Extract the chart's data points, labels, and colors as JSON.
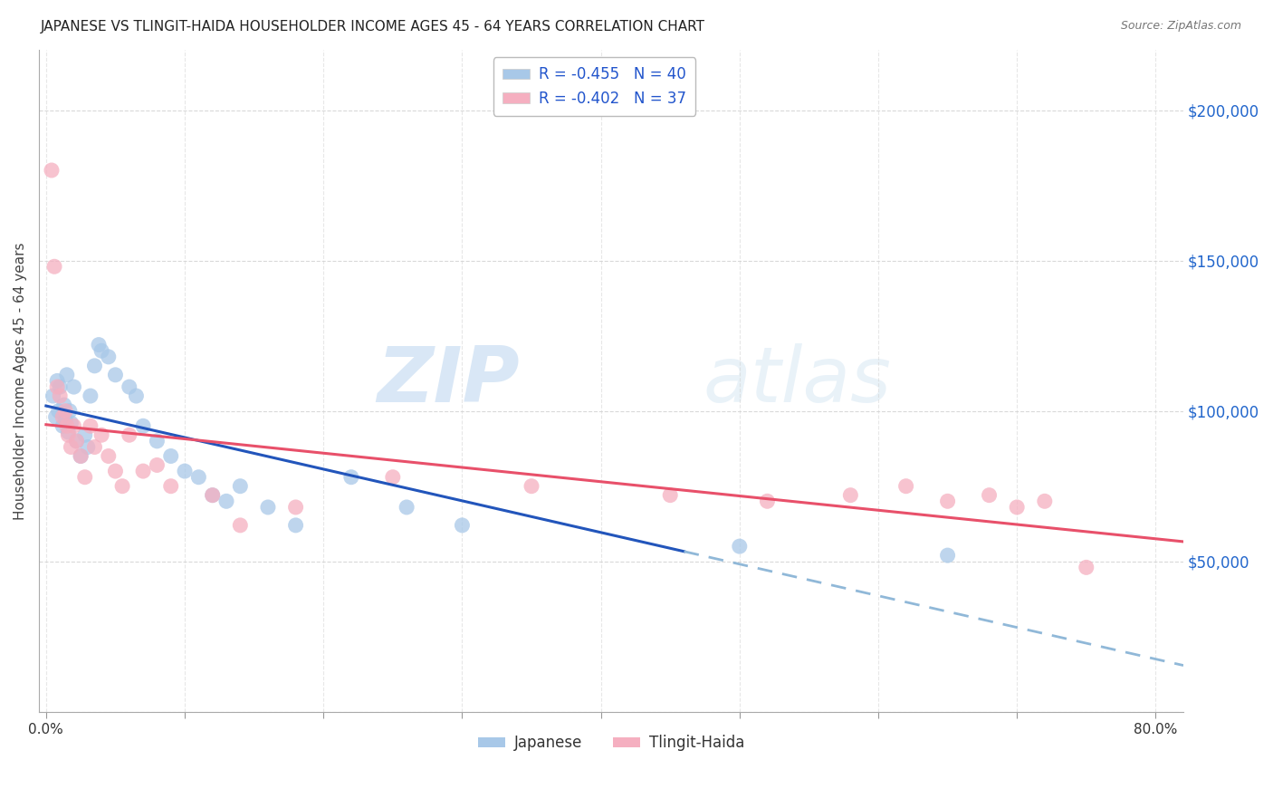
{
  "title": "JAPANESE VS TLINGIT-HAIDA HOUSEHOLDER INCOME AGES 45 - 64 YEARS CORRELATION CHART",
  "source": "Source: ZipAtlas.com",
  "ylabel": "Householder Income Ages 45 - 64 years",
  "xlabel_tick_positions": [
    0.0,
    0.1,
    0.2,
    0.3,
    0.4,
    0.5,
    0.6,
    0.7,
    0.8
  ],
  "xlabel_tick_labels": [
    "0.0%",
    "",
    "",
    "",
    "",
    "",
    "",
    "",
    "80.0%"
  ],
  "ylabel_vals": [
    0,
    50000,
    100000,
    150000,
    200000
  ],
  "ylabel_ticks_right": [
    "",
    "$50,000",
    "$100,000",
    "$150,000",
    "$200,000"
  ],
  "xlim": [
    -0.005,
    0.82
  ],
  "ylim": [
    0,
    220000
  ],
  "legend1_R": "R = -0.455",
  "legend1_N": "N = 40",
  "legend2_R": "R = -0.402",
  "legend2_N": "N = 37",
  "japanese_color": "#a8c8e8",
  "tlingit_color": "#f5afc0",
  "japanese_line_color": "#2255bb",
  "tlingit_line_color": "#e8506a",
  "dashed_line_color": "#90b8d8",
  "watermark_zip": "ZIP",
  "watermark_atlas": "atlas",
  "background_color": "#ffffff",
  "grid_color": "#d0d0d0",
  "japanese_x": [
    0.005,
    0.007,
    0.008,
    0.009,
    0.01,
    0.012,
    0.013,
    0.014,
    0.015,
    0.016,
    0.017,
    0.018,
    0.02,
    0.022,
    0.025,
    0.028,
    0.03,
    0.032,
    0.035,
    0.038,
    0.04,
    0.045,
    0.05,
    0.06,
    0.065,
    0.07,
    0.08,
    0.09,
    0.1,
    0.11,
    0.12,
    0.13,
    0.14,
    0.16,
    0.18,
    0.22,
    0.26,
    0.3,
    0.5,
    0.65
  ],
  "japanese_y": [
    105000,
    98000,
    110000,
    100000,
    108000,
    95000,
    102000,
    97000,
    112000,
    93000,
    100000,
    96000,
    108000,
    90000,
    85000,
    92000,
    88000,
    105000,
    115000,
    122000,
    120000,
    118000,
    112000,
    108000,
    105000,
    95000,
    90000,
    85000,
    80000,
    78000,
    72000,
    70000,
    75000,
    68000,
    62000,
    78000,
    68000,
    62000,
    55000,
    52000
  ],
  "tlingit_x": [
    0.004,
    0.006,
    0.008,
    0.01,
    0.012,
    0.014,
    0.015,
    0.016,
    0.018,
    0.02,
    0.022,
    0.025,
    0.028,
    0.032,
    0.035,
    0.04,
    0.045,
    0.05,
    0.055,
    0.06,
    0.07,
    0.08,
    0.09,
    0.12,
    0.14,
    0.18,
    0.25,
    0.35,
    0.45,
    0.52,
    0.58,
    0.62,
    0.65,
    0.68,
    0.7,
    0.72,
    0.75
  ],
  "tlingit_y": [
    180000,
    148000,
    108000,
    105000,
    98000,
    100000,
    95000,
    92000,
    88000,
    95000,
    90000,
    85000,
    78000,
    95000,
    88000,
    92000,
    85000,
    80000,
    75000,
    92000,
    80000,
    82000,
    75000,
    72000,
    62000,
    68000,
    78000,
    75000,
    72000,
    70000,
    72000,
    75000,
    70000,
    72000,
    68000,
    70000,
    48000
  ]
}
